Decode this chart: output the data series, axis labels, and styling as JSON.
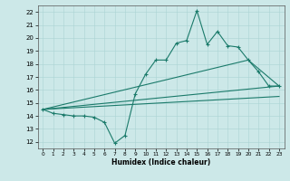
{
  "xlabel": "Humidex (Indice chaleur)",
  "bg_color": "#cce8e8",
  "line_color": "#1a7a6a",
  "xlim": [
    -0.5,
    23.5
  ],
  "ylim": [
    11.5,
    22.5
  ],
  "xticks": [
    0,
    1,
    2,
    3,
    4,
    5,
    6,
    7,
    8,
    9,
    10,
    11,
    12,
    13,
    14,
    15,
    16,
    17,
    18,
    19,
    20,
    21,
    22,
    23
  ],
  "yticks": [
    12,
    13,
    14,
    15,
    16,
    17,
    18,
    19,
    20,
    21,
    22
  ],
  "jagged_x": [
    0,
    1,
    2,
    3,
    4,
    5,
    6,
    7,
    8,
    9,
    10,
    11,
    12,
    13,
    14,
    15,
    16,
    17,
    18,
    19,
    20,
    21,
    22,
    23
  ],
  "jagged_y": [
    14.5,
    14.2,
    14.1,
    14.0,
    14.0,
    13.9,
    13.5,
    11.9,
    12.5,
    15.7,
    17.2,
    18.3,
    18.3,
    19.6,
    19.8,
    22.1,
    19.5,
    20.5,
    19.4,
    19.3,
    18.3,
    17.4,
    16.3,
    16.3
  ],
  "line2_x": [
    0,
    23
  ],
  "line2_y": [
    14.5,
    16.3
  ],
  "line3_x": [
    0,
    20,
    23
  ],
  "line3_y": [
    14.5,
    18.3,
    16.3
  ],
  "line4_x": [
    0,
    23
  ],
  "line4_y": [
    14.5,
    15.5
  ]
}
